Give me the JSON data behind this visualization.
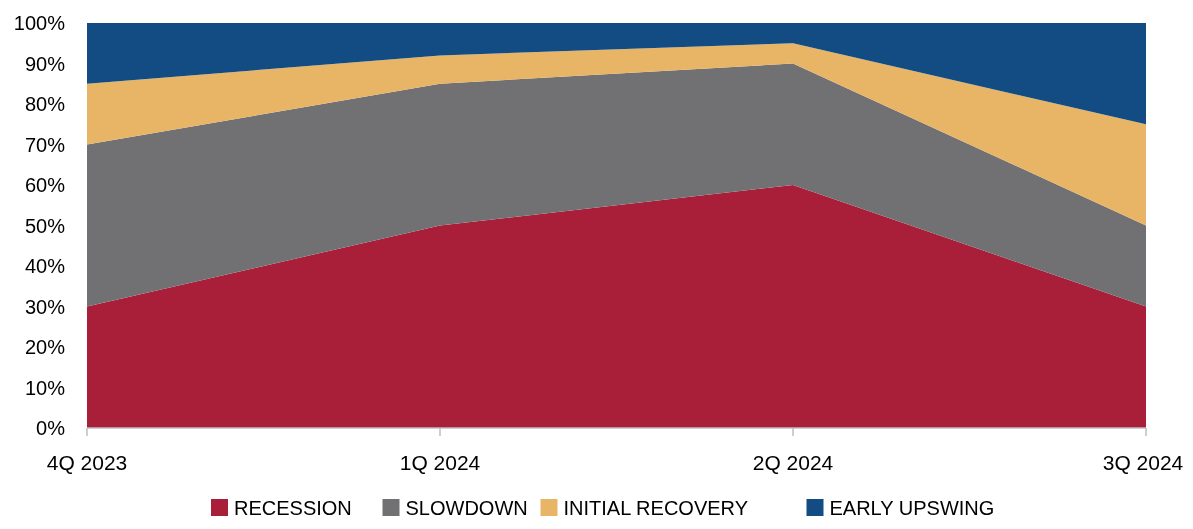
{
  "chart_data": {
    "type": "area",
    "stacked": true,
    "categories": [
      "4Q 2023",
      "1Q 2024",
      "2Q 2024",
      "3Q 2024"
    ],
    "series": [
      {
        "name": "RECESSION",
        "color": "#a91e39",
        "values": [
          30,
          50,
          60,
          30
        ]
      },
      {
        "name": "SLOWDOWN",
        "color": "#717174",
        "values": [
          40,
          35,
          30,
          20
        ]
      },
      {
        "name": "INITIAL RECOVERY",
        "color": "#e8b566",
        "values": [
          15,
          7,
          5,
          25
        ]
      },
      {
        "name": "EARLY UPSWING",
        "color": "#124c82",
        "values": [
          15,
          8,
          5,
          25
        ]
      }
    ],
    "ylim": [
      0,
      100
    ],
    "yticks": [
      {
        "value": 0,
        "label": "0%"
      },
      {
        "value": 10,
        "label": "10%"
      },
      {
        "value": 20,
        "label": "20%"
      },
      {
        "value": 30,
        "label": "30%"
      },
      {
        "value": 40,
        "label": "40%"
      },
      {
        "value": 50,
        "label": "50%"
      },
      {
        "value": 60,
        "label": "60%"
      },
      {
        "value": 70,
        "label": "70%"
      },
      {
        "value": 80,
        "label": "80%"
      },
      {
        "value": 90,
        "label": "90%"
      },
      {
        "value": 100,
        "label": "100%"
      }
    ],
    "legend": "bottom",
    "grid": false
  }
}
